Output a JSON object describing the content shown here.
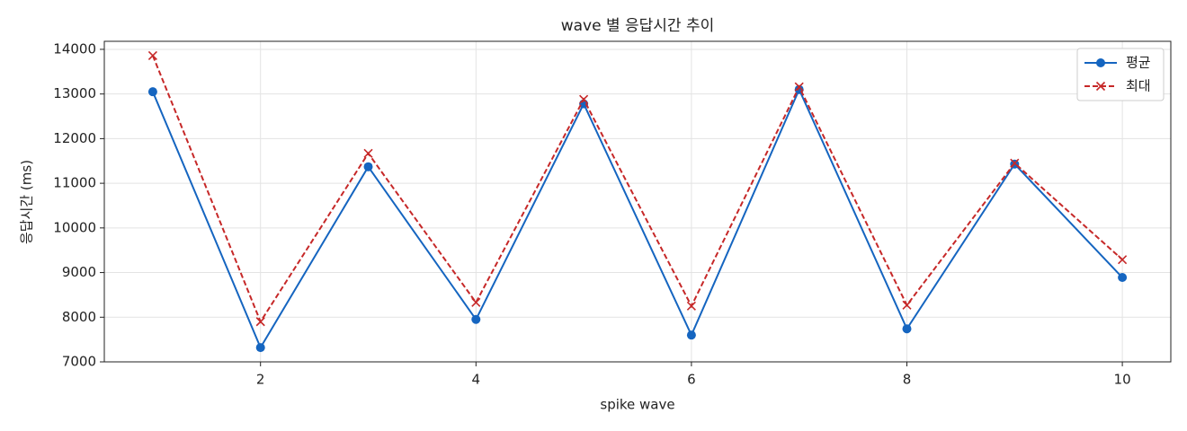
{
  "chart_data": {
    "type": "line",
    "title": "wave 별 응답시간 추이",
    "x_label": "spike wave",
    "y_label": "응답시간 (ms)",
    "x": [
      1,
      2,
      3,
      4,
      5,
      6,
      7,
      8,
      9,
      10
    ],
    "series": [
      {
        "name": "평균",
        "color": "#1565c0",
        "marker": "circle",
        "dash": "solid",
        "values": [
          13050,
          7320,
          11370,
          7950,
          12780,
          7600,
          13100,
          7740,
          11430,
          8890
        ]
      },
      {
        "name": "최대",
        "color": "#c62828",
        "marker": "x",
        "dash": "dashed",
        "values": [
          13860,
          7900,
          11670,
          8330,
          12880,
          8250,
          13160,
          8270,
          11450,
          9290
        ]
      }
    ],
    "xlim": [
      0.55,
      10.45
    ],
    "ylim": [
      7000,
      14180
    ],
    "xticks": [
      2,
      4,
      6,
      8,
      10
    ],
    "yticks": [
      7000,
      8000,
      9000,
      10000,
      11000,
      12000,
      13000,
      14000
    ],
    "grid": true,
    "legend": "upper right"
  }
}
